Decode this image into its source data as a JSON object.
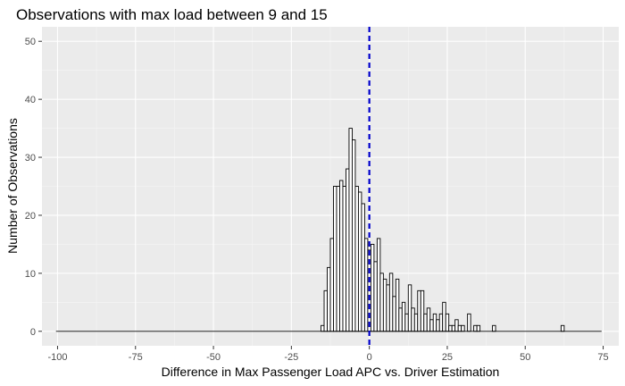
{
  "chart_data": {
    "type": "bar",
    "title": "Observations with max load between 9 and 15",
    "xlabel": "Difference in Max Passenger Load APC vs. Driver Estimation",
    "ylabel": "Number of Observations",
    "xlim": [
      -105,
      80
    ],
    "ylim": [
      -2.5,
      52.5
    ],
    "x_ticks": [
      -100,
      -75,
      -50,
      -25,
      0,
      25,
      50,
      75
    ],
    "x_tick_labels": [
      "-100",
      "-75",
      "-50",
      "-25",
      "0",
      "25",
      "50",
      "75"
    ],
    "y_ticks": [
      0,
      10,
      20,
      30,
      40,
      50
    ],
    "y_tick_labels": [
      "0",
      "10",
      "20",
      "30",
      "40",
      "50"
    ],
    "grid": true,
    "background": "#ebebeb",
    "bar_fill": "#ffffff",
    "bar_outline": "#000000",
    "vline": {
      "x": 0,
      "color": "#0000cc",
      "style": "dashed"
    },
    "bins": [
      {
        "x": -100,
        "count": 0
      },
      {
        "x": -7,
        "count": 28
      },
      {
        "x": -15,
        "count": 1
      },
      {
        "x": -14,
        "count": 7
      },
      {
        "x": -13,
        "count": 11
      },
      {
        "x": -12,
        "count": 16
      },
      {
        "x": -11,
        "count": 25
      },
      {
        "x": -10,
        "count": 25
      },
      {
        "x": -9,
        "count": 26
      },
      {
        "x": -8,
        "count": 25
      },
      {
        "x": -6,
        "count": 35
      },
      {
        "x": -5,
        "count": 33
      },
      {
        "x": -4,
        "count": 25
      },
      {
        "x": -3,
        "count": 24
      },
      {
        "x": -2,
        "count": 22
      },
      {
        "x": -1,
        "count": 16
      },
      {
        "x": 0,
        "count": 14
      },
      {
        "x": 1,
        "count": 15
      },
      {
        "x": 2,
        "count": 12
      },
      {
        "x": 3,
        "count": 16
      },
      {
        "x": 4,
        "count": 10
      },
      {
        "x": 5,
        "count": 9
      },
      {
        "x": 6,
        "count": 8
      },
      {
        "x": 7,
        "count": 10
      },
      {
        "x": 8,
        "count": 6
      },
      {
        "x": 9,
        "count": 9
      },
      {
        "x": 10,
        "count": 4
      },
      {
        "x": 11,
        "count": 5
      },
      {
        "x": 12,
        "count": 3
      },
      {
        "x": 13,
        "count": 8
      },
      {
        "x": 14,
        "count": 4
      },
      {
        "x": 15,
        "count": 3
      },
      {
        "x": 16,
        "count": 7
      },
      {
        "x": 17,
        "count": 7
      },
      {
        "x": 18,
        "count": 3
      },
      {
        "x": 19,
        "count": 4
      },
      {
        "x": 20,
        "count": 2
      },
      {
        "x": 21,
        "count": 3
      },
      {
        "x": 22,
        "count": 2
      },
      {
        "x": 23,
        "count": 3
      },
      {
        "x": 24,
        "count": 5
      },
      {
        "x": 25,
        "count": 3
      },
      {
        "x": 26,
        "count": 1
      },
      {
        "x": 27,
        "count": 1
      },
      {
        "x": 28,
        "count": 2
      },
      {
        "x": 29,
        "count": 1
      },
      {
        "x": 30,
        "count": 1
      },
      {
        "x": 32,
        "count": 3
      },
      {
        "x": 34,
        "count": 1
      },
      {
        "x": 35,
        "count": 1
      },
      {
        "x": 40,
        "count": 1
      },
      {
        "x": 62,
        "count": 1
      },
      {
        "x": 74,
        "count": 0
      }
    ]
  }
}
